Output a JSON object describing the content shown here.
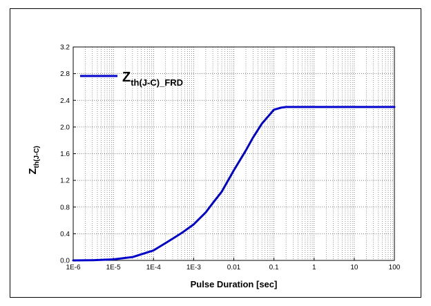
{
  "chart_data": {
    "type": "line",
    "x_scale": "log",
    "xlim": [
      "1E-6",
      "100"
    ],
    "ylim": [
      0,
      3.2
    ],
    "x_ticks": [
      "1E-6",
      "1E-5",
      "1E-4",
      "1E-3",
      "0.01",
      "0.1",
      "1",
      "10",
      "100"
    ],
    "y_ticks": [
      "0.0",
      "0.4",
      "0.8",
      "1.2",
      "1.6",
      "2.0",
      "2.4",
      "2.8",
      "3.2"
    ],
    "xlabel": "Pulse Duration [sec]",
    "ylabel": {
      "main": "Z",
      "sub": "th(J-C)"
    },
    "grid": "dotted, log minor",
    "legend": {
      "placement": "top-left",
      "main": "Z",
      "sub": "th(J-C)_FRD"
    },
    "series": [
      {
        "name": "Zth(J-C)_FRD",
        "color": "#0000cc",
        "x": [
          1e-06,
          3e-06,
          1e-05,
          3e-05,
          0.0001,
          0.0002,
          0.0005,
          0.001,
          0.002,
          0.003,
          0.005,
          0.01,
          0.02,
          0.03,
          0.05,
          0.1,
          0.15,
          0.2,
          0.3,
          0.5,
          1,
          10,
          100
        ],
        "y": [
          0.0,
          0.003,
          0.015,
          0.05,
          0.15,
          0.26,
          0.41,
          0.54,
          0.72,
          0.86,
          1.03,
          1.35,
          1.65,
          1.84,
          2.05,
          2.26,
          2.29,
          2.3,
          2.3,
          2.3,
          2.3,
          2.3,
          2.3
        ]
      }
    ]
  }
}
